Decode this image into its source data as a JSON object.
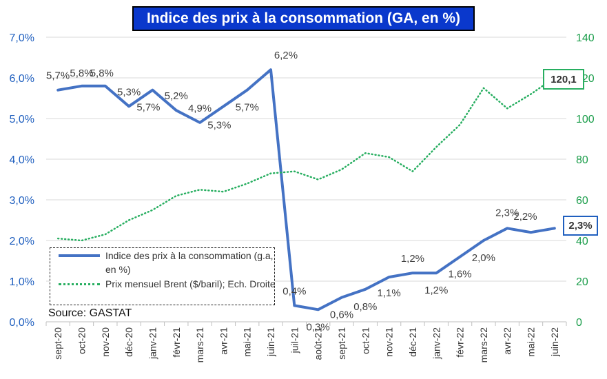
{
  "title": "Indice des prix à la consommation (GA, en %)",
  "source": "Source: GASTAT",
  "chart_data": {
    "type": "line",
    "categories": [
      "sept-20",
      "oct-20",
      "nov-20",
      "déc-20",
      "janv-21",
      "févr-21",
      "mars-21",
      "avr-21",
      "mai-21",
      "juin-21",
      "juil-21",
      "août-21",
      "sept-21",
      "oct-21",
      "nov-21",
      "déc-21",
      "janv-22",
      "févr-22",
      "mars-22",
      "avr-22",
      "mai-22",
      "juin-22"
    ],
    "series": [
      {
        "name": "Indice des prix à la consommation (g.a, en %)",
        "axis": "left",
        "color": "#4472c4",
        "style": "solid",
        "values": [
          5.7,
          5.8,
          5.8,
          5.3,
          5.7,
          5.2,
          4.9,
          5.3,
          5.7,
          6.2,
          0.4,
          0.3,
          0.6,
          0.8,
          1.1,
          1.2,
          1.2,
          1.6,
          2.0,
          2.3,
          2.2,
          2.3
        ],
        "data_labels": [
          "5,7%",
          "5,8%",
          "5,8%",
          "5,3%",
          "5,7%",
          "5,2%",
          "4,9%",
          "5,3%",
          "5,7%",
          "6,2%",
          "0,4%",
          "0,3%",
          "0,6%",
          "0,8%",
          "1,1%",
          "1,2%",
          "1,2%",
          "1,6%",
          "2,0%",
          "2,3%",
          "2,2%",
          "2,3%"
        ]
      },
      {
        "name": "Prix mensuel Brent ($/baril); Ech. Droite",
        "axis": "right",
        "color": "#27ae60",
        "style": "dotted",
        "values": [
          41,
          40,
          43,
          50,
          55,
          62,
          65,
          64,
          68,
          73,
          74,
          70,
          75,
          83,
          81,
          74,
          86,
          97,
          115,
          105,
          112,
          120.1
        ]
      }
    ],
    "y_left": {
      "min": 0,
      "max": 7,
      "ticks": [
        "0,0%",
        "1,0%",
        "2,0%",
        "3,0%",
        "4,0%",
        "5,0%",
        "6,0%",
        "7,0%"
      ]
    },
    "y_right": {
      "min": 0,
      "max": 140,
      "ticks": [
        "0",
        "20",
        "40",
        "60",
        "80",
        "100",
        "120",
        "140"
      ]
    },
    "callouts": {
      "brent_last": "120,1",
      "cpi_last": "2,3%"
    },
    "grid": true,
    "legend_position": "bottom-left"
  }
}
